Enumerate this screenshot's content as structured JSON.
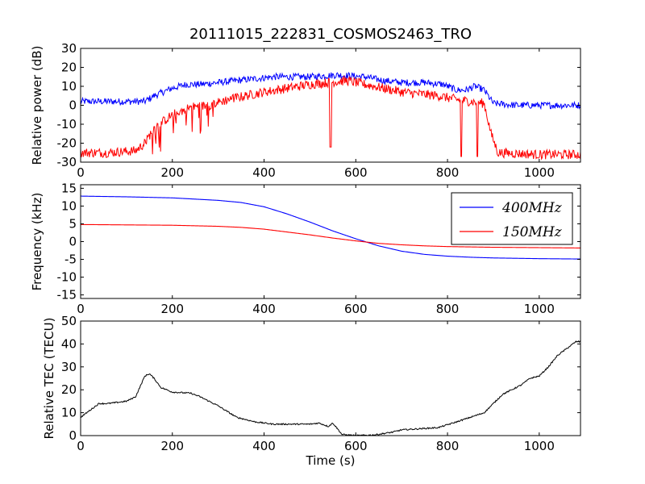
{
  "figure": {
    "title": "20111015_222831_COSMOS2463_TRO"
  },
  "chart_data": [
    {
      "type": "line",
      "xlabel": "",
      "ylabel": "Relative power (dB)",
      "xlim": [
        0,
        1090
      ],
      "ylim": [
        -30,
        30
      ],
      "xticks": [
        0,
        200,
        400,
        600,
        800,
        1000
      ],
      "yticks": [
        -30,
        -20,
        -10,
        0,
        10,
        20,
        30
      ],
      "grid": false,
      "series": [
        {
          "color": "#0000ff",
          "noise": 1.8,
          "points": [
            [
              0,
              2
            ],
            [
              50,
              2
            ],
            [
              100,
              2
            ],
            [
              140,
              2
            ],
            [
              160,
              5
            ],
            [
              200,
              9
            ],
            [
              230,
              11
            ],
            [
              260,
              11
            ],
            [
              300,
              12
            ],
            [
              340,
              13
            ],
            [
              380,
              14
            ],
            [
              420,
              15
            ],
            [
              460,
              15
            ],
            [
              500,
              15
            ],
            [
              560,
              16
            ],
            [
              620,
              15
            ],
            [
              660,
              13
            ],
            [
              700,
              12
            ],
            [
              750,
              12
            ],
            [
              790,
              11
            ],
            [
              820,
              8
            ],
            [
              840,
              8
            ],
            [
              860,
              10
            ],
            [
              880,
              8
            ],
            [
              900,
              1
            ],
            [
              950,
              0
            ],
            [
              1000,
              0
            ],
            [
              1090,
              0
            ]
          ]
        },
        {
          "color": "#ff0000",
          "noise": 2.5,
          "points": [
            [
              0,
              -25
            ],
            [
              60,
              -25
            ],
            [
              120,
              -24
            ],
            [
              140,
              -20
            ],
            [
              160,
              -12
            ],
            [
              200,
              -5
            ],
            [
              240,
              -1
            ],
            [
              280,
              0
            ],
            [
              320,
              3
            ],
            [
              360,
              5
            ],
            [
              400,
              7
            ],
            [
              450,
              9
            ],
            [
              500,
              11
            ],
            [
              540,
              12
            ],
            [
              580,
              13
            ],
            [
              620,
              11
            ],
            [
              660,
              9
            ],
            [
              700,
              7
            ],
            [
              740,
              6
            ],
            [
              780,
              5
            ],
            [
              820,
              3
            ],
            [
              850,
              2
            ],
            [
              880,
              1
            ],
            [
              895,
              -15
            ],
            [
              910,
              -25
            ],
            [
              1000,
              -26
            ],
            [
              1090,
              -26
            ]
          ]
        }
      ],
      "dips": [
        {
          "series": 1,
          "x": 545,
          "y": -22
        },
        {
          "series": 1,
          "x": 830,
          "y": -27
        },
        {
          "series": 1,
          "x": 865,
          "y": -27
        }
      ]
    },
    {
      "type": "line",
      "xlabel": "",
      "ylabel": "Frequency (kHz)",
      "xlim": [
        0,
        1090
      ],
      "ylim": [
        -16,
        16
      ],
      "xticks": [
        0,
        200,
        400,
        600,
        800,
        1000
      ],
      "yticks": [
        -15,
        -10,
        -5,
        0,
        5,
        10,
        15
      ],
      "grid": false,
      "legend": {
        "placement": "upper-right"
      },
      "series": [
        {
          "name": "400MHz",
          "color": "#0000ff",
          "noise": 0,
          "points": [
            [
              0,
              12.8
            ],
            [
              100,
              12.6
            ],
            [
              200,
              12.3
            ],
            [
              300,
              11.6
            ],
            [
              350,
              11.0
            ],
            [
              400,
              9.8
            ],
            [
              450,
              7.8
            ],
            [
              500,
              5.5
            ],
            [
              550,
              3.0
            ],
            [
              600,
              0.8
            ],
            [
              650,
              -1.2
            ],
            [
              700,
              -2.7
            ],
            [
              750,
              -3.6
            ],
            [
              800,
              -4.1
            ],
            [
              850,
              -4.4
            ],
            [
              900,
              -4.6
            ],
            [
              1000,
              -4.8
            ],
            [
              1090,
              -4.9
            ]
          ]
        },
        {
          "name": "150MHz",
          "color": "#ff0000",
          "noise": 0,
          "points": [
            [
              0,
              4.8
            ],
            [
              100,
              4.7
            ],
            [
              200,
              4.6
            ],
            [
              300,
              4.3
            ],
            [
              350,
              4.0
            ],
            [
              400,
              3.5
            ],
            [
              450,
              2.7
            ],
            [
              500,
              1.9
            ],
            [
              550,
              1.0
            ],
            [
              600,
              0.2
            ],
            [
              650,
              -0.5
            ],
            [
              700,
              -0.9
            ],
            [
              750,
              -1.2
            ],
            [
              800,
              -1.4
            ],
            [
              900,
              -1.6
            ],
            [
              1000,
              -1.7
            ],
            [
              1090,
              -1.8
            ]
          ]
        }
      ]
    },
    {
      "type": "line",
      "xlabel": "Time (s)",
      "ylabel": "Relative TEC (TECU)",
      "xlim": [
        0,
        1090
      ],
      "ylim": [
        0,
        50
      ],
      "xticks": [
        0,
        200,
        400,
        600,
        800,
        1000
      ],
      "yticks": [
        0,
        10,
        20,
        30,
        40,
        50
      ],
      "grid": false,
      "series": [
        {
          "color": "#000000",
          "noise": 0.3,
          "points": [
            [
              0,
              8
            ],
            [
              20,
              11
            ],
            [
              40,
              14
            ],
            [
              60,
              14
            ],
            [
              80,
              14.5
            ],
            [
              100,
              15
            ],
            [
              120,
              17
            ],
            [
              140,
              26
            ],
            [
              150,
              27
            ],
            [
              160,
              25
            ],
            [
              175,
              21
            ],
            [
              200,
              19
            ],
            [
              240,
              18.5
            ],
            [
              260,
              17
            ],
            [
              300,
              13
            ],
            [
              340,
              8
            ],
            [
              380,
              6
            ],
            [
              420,
              5
            ],
            [
              460,
              5
            ],
            [
              500,
              5
            ],
            [
              520,
              5.5
            ],
            [
              540,
              4
            ],
            [
              550,
              5.5
            ],
            [
              570,
              0.5
            ],
            [
              600,
              0
            ],
            [
              640,
              0.3
            ],
            [
              680,
              1.5
            ],
            [
              700,
              2.5
            ],
            [
              740,
              3
            ],
            [
              780,
              3.5
            ],
            [
              820,
              6
            ],
            [
              850,
              8
            ],
            [
              880,
              10
            ],
            [
              900,
              14
            ],
            [
              920,
              18
            ],
            [
              940,
              20
            ],
            [
              960,
              22
            ],
            [
              980,
              25
            ],
            [
              1000,
              26
            ],
            [
              1020,
              30
            ],
            [
              1040,
              35
            ],
            [
              1060,
              38
            ],
            [
              1080,
              41
            ],
            [
              1090,
              41
            ]
          ]
        }
      ]
    }
  ]
}
